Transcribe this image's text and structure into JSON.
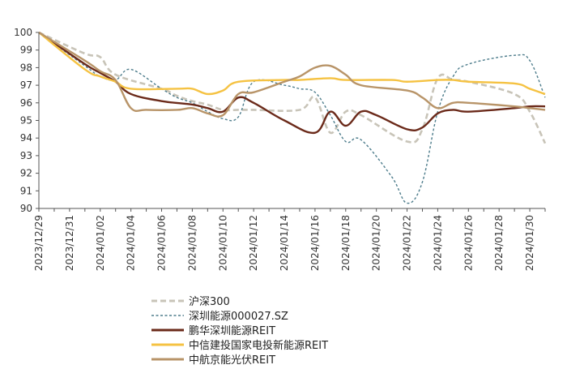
{
  "chart_data": {
    "type": "line",
    "title": "",
    "xlabel": "",
    "ylabel": "",
    "ylim": [
      90,
      100
    ],
    "yticks": [
      90,
      91,
      92,
      93,
      94,
      95,
      96,
      97,
      98,
      99,
      100
    ],
    "xlim": [
      "2023/12/29",
      "2024/01/31"
    ],
    "xticks": [
      "2023/12/29",
      "2023/12/31",
      "2024/01/02",
      "2024/01/04",
      "2024/01/06",
      "2024/01/08",
      "2024/01/10",
      "2024/01/12",
      "2024/01/14",
      "2024/01/16",
      "2024/01/18",
      "2024/01/20",
      "2024/01/22",
      "2024/01/24",
      "2024/01/26",
      "2024/01/28",
      "2024/01/30"
    ],
    "grid": false,
    "legend_position": "bottom-left",
    "series": [
      {
        "name": "沪深300",
        "color": "#c8c4b8",
        "dash": "dashed",
        "points": [
          [
            "2023/12/29",
            100
          ],
          [
            "2024/01/01",
            98.8
          ],
          [
            "2024/01/02",
            98.6
          ],
          [
            "2024/01/03",
            97.6
          ],
          [
            "2024/01/06",
            96.8
          ],
          [
            "2024/01/07",
            96.4
          ],
          [
            "2024/01/08",
            96.1
          ],
          [
            "2024/01/09",
            95.9
          ],
          [
            "2024/01/10",
            95.6
          ],
          [
            "2024/01/11",
            95.6
          ],
          [
            "2024/01/12",
            95.6
          ],
          [
            "2024/01/15",
            95.6
          ],
          [
            "2024/01/16",
            96.3
          ],
          [
            "2024/01/17",
            94.3
          ],
          [
            "2024/01/18",
            95.5
          ],
          [
            "2024/01/19",
            95.3
          ],
          [
            "2024/01/22",
            93.8
          ],
          [
            "2024/01/23",
            94.5
          ],
          [
            "2024/01/24",
            97.4
          ],
          [
            "2024/01/25",
            97.3
          ],
          [
            "2024/01/26",
            97.2
          ],
          [
            "2024/01/29",
            96.5
          ],
          [
            "2024/01/30",
            95.5
          ],
          [
            "2024/01/31",
            93.7
          ]
        ]
      },
      {
        "name": "深圳能源000027.SZ",
        "color": "#4e7d8c",
        "dash": "dotted",
        "points": [
          [
            "2023/12/29",
            100
          ],
          [
            "2024/01/01",
            98.1
          ],
          [
            "2024/01/02",
            97.5
          ],
          [
            "2024/01/03",
            97.3
          ],
          [
            "2024/01/04",
            97.9
          ],
          [
            "2024/01/06",
            96.8
          ],
          [
            "2024/01/07",
            96.3
          ],
          [
            "2024/01/08",
            96.0
          ],
          [
            "2024/01/09",
            95.5
          ],
          [
            "2024/01/10",
            95.1
          ],
          [
            "2024/01/11",
            95.2
          ],
          [
            "2024/01/12",
            97.2
          ],
          [
            "2024/01/14",
            97.0
          ],
          [
            "2024/01/15",
            96.8
          ],
          [
            "2024/01/16",
            96.6
          ],
          [
            "2024/01/17",
            95.3
          ],
          [
            "2024/01/18",
            93.8
          ],
          [
            "2024/01/19",
            93.9
          ],
          [
            "2024/01/21",
            91.8
          ],
          [
            "2024/01/22",
            90.3
          ],
          [
            "2024/01/23",
            91.5
          ],
          [
            "2024/01/24",
            95.5
          ],
          [
            "2024/01/25",
            97.5
          ],
          [
            "2024/01/26",
            98.2
          ],
          [
            "2024/01/29",
            98.7
          ],
          [
            "2024/01/30",
            98.4
          ],
          [
            "2024/01/31",
            96.3
          ]
        ]
      },
      {
        "name": "鹏华深圳能源REIT",
        "color": "#6b2a1a",
        "dash": "solid",
        "points": [
          [
            "2023/12/29",
            100
          ],
          [
            "2024/01/01",
            98.2
          ],
          [
            "2024/01/02",
            97.7
          ],
          [
            "2024/01/03",
            97.2
          ],
          [
            "2024/01/04",
            96.5
          ],
          [
            "2024/01/06",
            96.1
          ],
          [
            "2024/01/08",
            95.9
          ],
          [
            "2024/01/09",
            95.7
          ],
          [
            "2024/01/10",
            95.5
          ],
          [
            "2024/01/11",
            96.3
          ],
          [
            "2024/01/12",
            96.0
          ],
          [
            "2024/01/14",
            95.0
          ],
          [
            "2024/01/16",
            94.3
          ],
          [
            "2024/01/17",
            95.5
          ],
          [
            "2024/01/18",
            94.7
          ],
          [
            "2024/01/19",
            95.5
          ],
          [
            "2024/01/20",
            95.3
          ],
          [
            "2024/01/22",
            94.5
          ],
          [
            "2024/01/23",
            94.6
          ],
          [
            "2024/01/24",
            95.4
          ],
          [
            "2024/01/25",
            95.6
          ],
          [
            "2024/01/26",
            95.5
          ],
          [
            "2024/01/29",
            95.7
          ],
          [
            "2024/01/30",
            95.8
          ],
          [
            "2024/01/31",
            95.8
          ]
        ]
      },
      {
        "name": "中信建投国家电投新能源REIT",
        "color": "#f5c242",
        "dash": "solid",
        "points": [
          [
            "2023/12/29",
            100
          ],
          [
            "2024/01/01",
            97.9
          ],
          [
            "2024/01/02",
            97.5
          ],
          [
            "2024/01/03",
            97.2
          ],
          [
            "2024/01/04",
            96.8
          ],
          [
            "2024/01/07",
            96.8
          ],
          [
            "2024/01/08",
            96.8
          ],
          [
            "2024/01/09",
            96.5
          ],
          [
            "2024/01/10",
            96.7
          ],
          [
            "2024/01/11",
            97.2
          ],
          [
            "2024/01/14",
            97.3
          ],
          [
            "2024/01/15",
            97.3
          ],
          [
            "2024/01/17",
            97.4
          ],
          [
            "2024/01/18",
            97.3
          ],
          [
            "2024/01/21",
            97.3
          ],
          [
            "2024/01/22",
            97.2
          ],
          [
            "2024/01/24",
            97.3
          ],
          [
            "2024/01/25",
            97.3
          ],
          [
            "2024/01/26",
            97.2
          ],
          [
            "2024/01/29",
            97.1
          ],
          [
            "2024/01/30",
            96.8
          ],
          [
            "2024/01/31",
            96.5
          ]
        ]
      },
      {
        "name": "中航京能光伏REIT",
        "color": "#b89468",
        "dash": "solid",
        "points": [
          [
            "2023/12/29",
            100
          ],
          [
            "2024/01/01",
            98.4
          ],
          [
            "2024/01/02",
            97.8
          ],
          [
            "2024/01/03",
            97.3
          ],
          [
            "2024/01/04",
            95.7
          ],
          [
            "2024/01/05",
            95.6
          ],
          [
            "2024/01/07",
            95.6
          ],
          [
            "2024/01/08",
            95.7
          ],
          [
            "2024/01/09",
            95.4
          ],
          [
            "2024/01/10",
            95.3
          ],
          [
            "2024/01/11",
            96.5
          ],
          [
            "2024/01/12",
            96.6
          ],
          [
            "2024/01/14",
            97.2
          ],
          [
            "2024/01/15",
            97.5
          ],
          [
            "2024/01/16",
            98.0
          ],
          [
            "2024/01/17",
            98.1
          ],
          [
            "2024/01/18",
            97.6
          ],
          [
            "2024/01/19",
            97.0
          ],
          [
            "2024/01/22",
            96.7
          ],
          [
            "2024/01/23",
            96.3
          ],
          [
            "2024/01/24",
            95.7
          ],
          [
            "2024/01/25",
            96.0
          ],
          [
            "2024/01/26",
            96.0
          ],
          [
            "2024/01/29",
            95.8
          ],
          [
            "2024/01/30",
            95.7
          ],
          [
            "2024/01/31",
            95.6
          ]
        ]
      }
    ]
  }
}
